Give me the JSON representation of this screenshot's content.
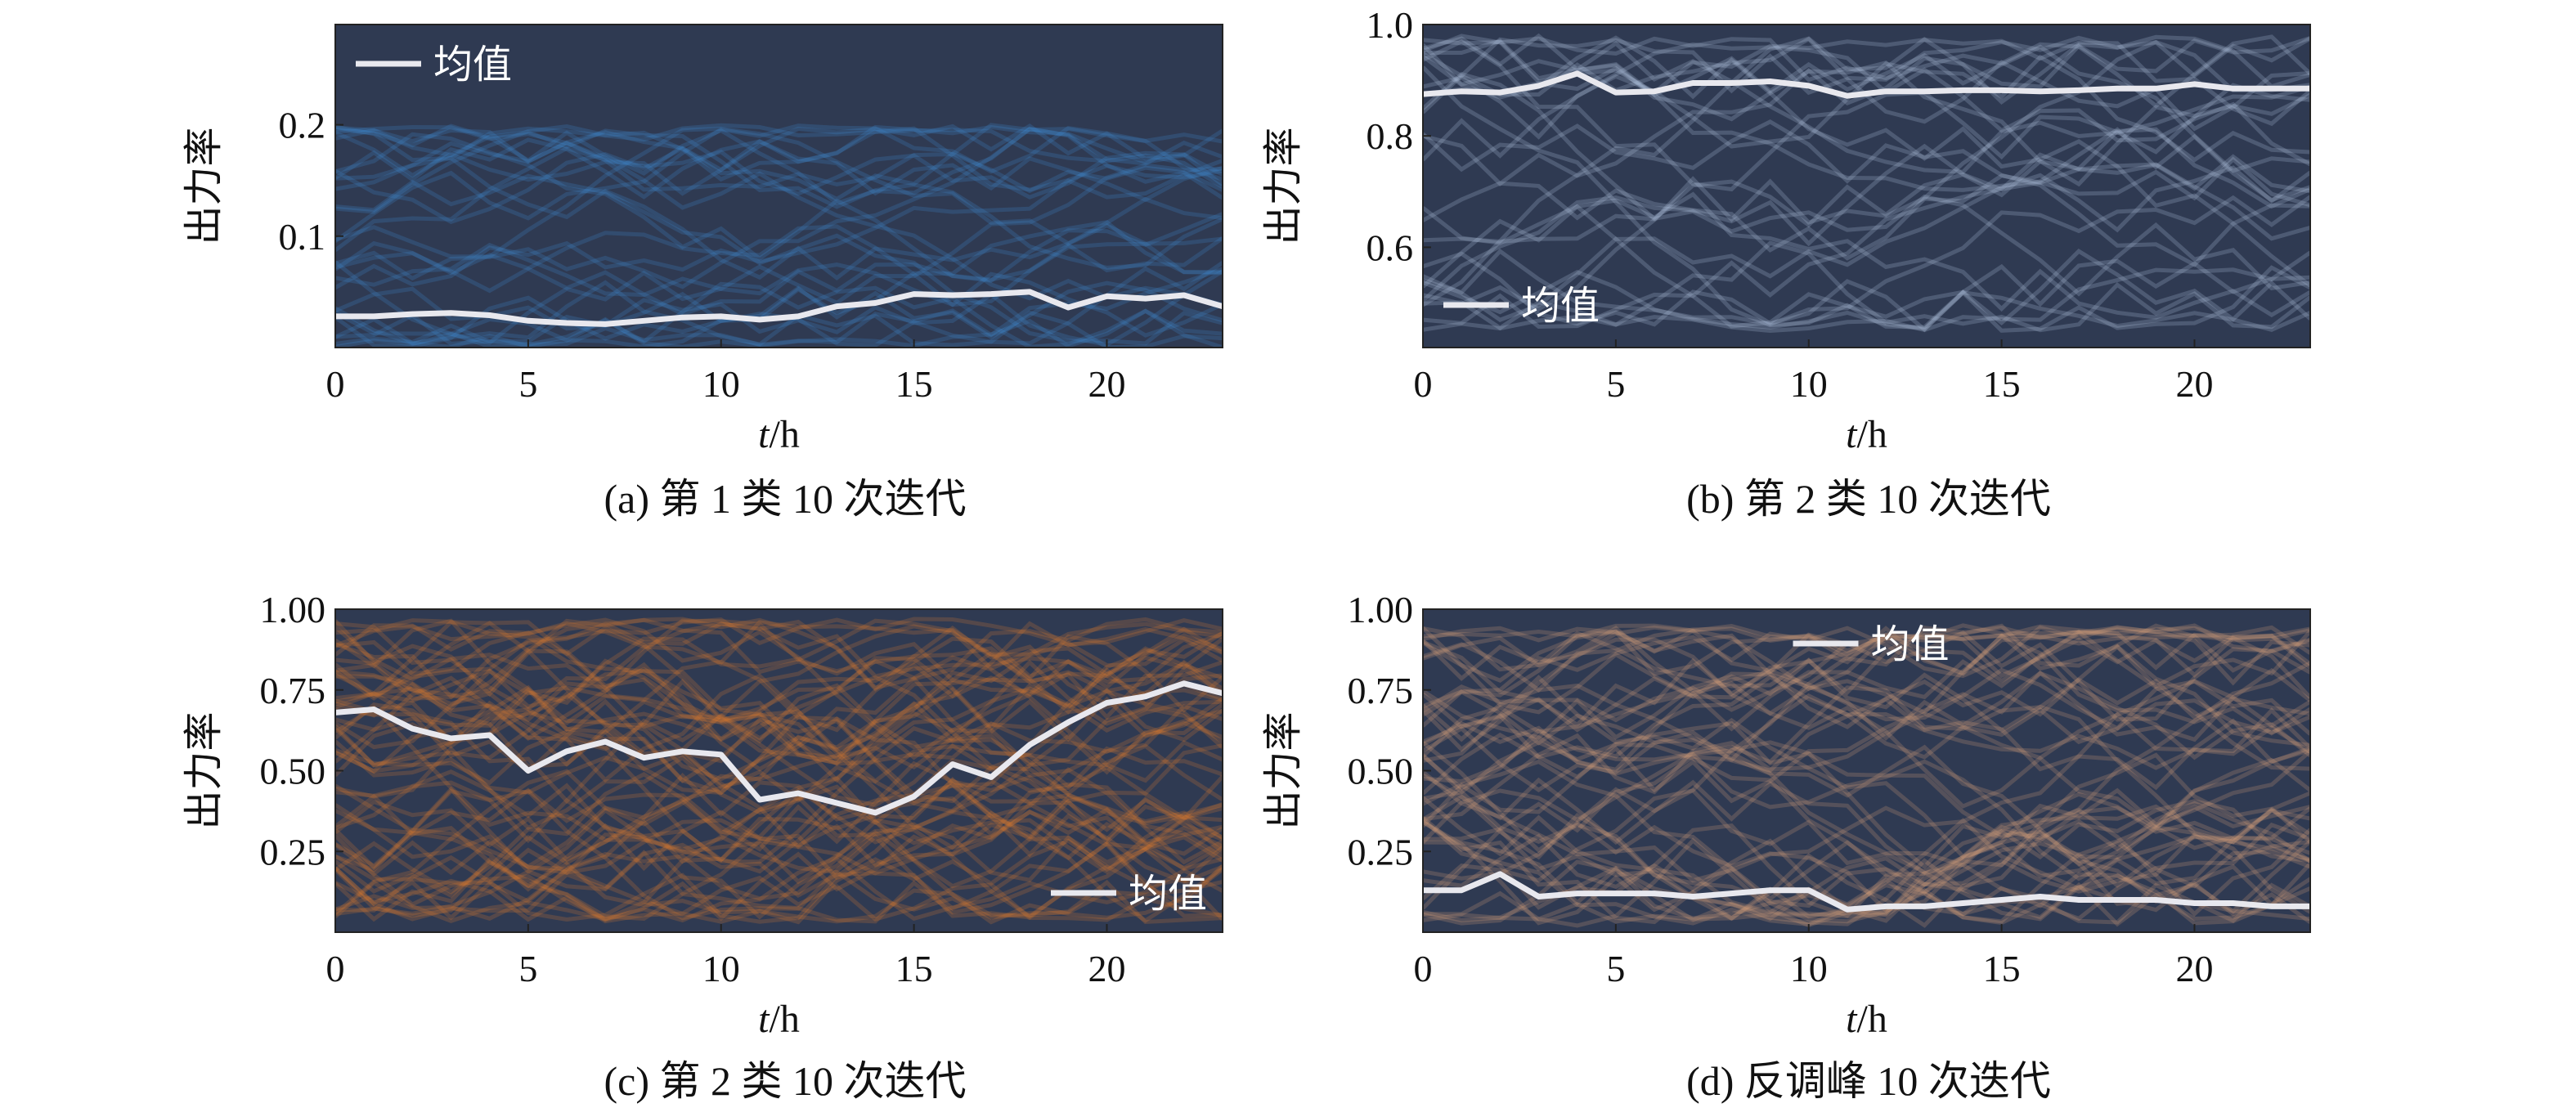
{
  "colors": {
    "plot_bg": "#2f3a52",
    "mean_line": "#e8e8ee",
    "series_a": "#3f8fd6",
    "series_b": "#b9cce8",
    "series_c": "#e07a2c",
    "series_d": "#e0a57a"
  },
  "chart_data": [
    {
      "type": "line",
      "panel": "a",
      "caption": "(a) 第 1 类 10 次迭代",
      "xlabel_italic": "t",
      "xlabel_unit": "/h",
      "ylabel": "出力率",
      "xlim": [
        0,
        23
      ],
      "ylim": [
        0.0,
        0.29
      ],
      "xticks": [
        0,
        5,
        10,
        15,
        20
      ],
      "xtick_labels": [
        "0",
        "5",
        "10",
        "15",
        "20"
      ],
      "yticks": [
        0.1,
        0.2
      ],
      "ytick_labels": [
        "0.1",
        "0.2"
      ],
      "legend": {
        "label": "均值",
        "position": "top-left"
      },
      "color": "#3f8fd6",
      "sample_count": 30,
      "sample_range": [
        0.0,
        0.2
      ],
      "mean": {
        "x": [
          0,
          1,
          2,
          3,
          4,
          5,
          6,
          7,
          8,
          9,
          10,
          11,
          12,
          13,
          14,
          15,
          16,
          17,
          18,
          19,
          20,
          21,
          22,
          23
        ],
        "y": [
          0.028,
          0.028,
          0.03,
          0.031,
          0.029,
          0.024,
          0.022,
          0.021,
          0.024,
          0.027,
          0.028,
          0.025,
          0.028,
          0.037,
          0.04,
          0.048,
          0.047,
          0.048,
          0.05,
          0.036,
          0.046,
          0.044,
          0.047,
          0.037
        ]
      }
    },
    {
      "type": "line",
      "panel": "b",
      "caption": "(b) 第 2 类 10 次迭代",
      "xlabel_italic": "t",
      "xlabel_unit": "/h",
      "ylabel": "出力率",
      "xlim": [
        0,
        23
      ],
      "ylim": [
        0.42,
        1.0
      ],
      "xticks": [
        0,
        5,
        10,
        15,
        20
      ],
      "xtick_labels": [
        "0",
        "5",
        "10",
        "15",
        "20"
      ],
      "yticks": [
        0.6,
        0.8,
        1.0
      ],
      "ytick_labels": [
        "0.6",
        "0.8",
        "1.0"
      ],
      "legend": {
        "label": "均值",
        "position": "bottom-left"
      },
      "color": "#b9cce8",
      "sample_count": 30,
      "sample_range": [
        0.45,
        0.98
      ],
      "mean": {
        "x": [
          0,
          1,
          2,
          3,
          4,
          5,
          6,
          7,
          8,
          9,
          10,
          11,
          12,
          13,
          14,
          15,
          16,
          17,
          18,
          19,
          20,
          21,
          22,
          23
        ],
        "y": [
          0.875,
          0.88,
          0.878,
          0.89,
          0.912,
          0.878,
          0.88,
          0.895,
          0.895,
          0.898,
          0.89,
          0.872,
          0.88,
          0.88,
          0.882,
          0.882,
          0.88,
          0.882,
          0.885,
          0.885,
          0.893,
          0.885,
          0.885,
          0.885
        ]
      }
    },
    {
      "type": "line",
      "panel": "c",
      "caption": "(c) 第 2 类 10 次迭代",
      "xlabel_italic": "t",
      "xlabel_unit": "/h",
      "ylabel": "出力率",
      "xlim": [
        0,
        23
      ],
      "ylim": [
        0.0,
        1.0
      ],
      "xticks": [
        0,
        5,
        10,
        15,
        20
      ],
      "xtick_labels": [
        "0",
        "5",
        "10",
        "15",
        "20"
      ],
      "yticks": [
        0.25,
        0.5,
        0.75,
        1.0
      ],
      "ytick_labels": [
        "0.25",
        "0.50",
        "0.75",
        "1.00"
      ],
      "legend": {
        "label": "均值",
        "position": "bottom-right"
      },
      "color": "#e07a2c",
      "sample_count": 60,
      "sample_range": [
        0.03,
        0.97
      ],
      "mean": {
        "x": [
          0,
          1,
          2,
          3,
          4,
          5,
          6,
          7,
          8,
          9,
          10,
          11,
          12,
          13,
          14,
          15,
          16,
          17,
          18,
          19,
          20,
          21,
          22,
          23
        ],
        "y": [
          0.68,
          0.69,
          0.63,
          0.6,
          0.61,
          0.5,
          0.56,
          0.59,
          0.54,
          0.56,
          0.55,
          0.41,
          0.43,
          0.4,
          0.37,
          0.42,
          0.52,
          0.48,
          0.58,
          0.65,
          0.71,
          0.73,
          0.77,
          0.74
        ]
      }
    },
    {
      "type": "line",
      "panel": "d",
      "caption": "(d) 反调峰 10 次迭代",
      "xlabel_italic": "t",
      "xlabel_unit": "/h",
      "ylabel": "出力率",
      "xlim": [
        0,
        23
      ],
      "ylim": [
        0.0,
        1.0
      ],
      "xticks": [
        0,
        5,
        10,
        15,
        20
      ],
      "xtick_labels": [
        "0",
        "5",
        "10",
        "15",
        "20"
      ],
      "yticks": [
        0.25,
        0.5,
        0.75,
        1.0
      ],
      "ytick_labels": [
        "0.25",
        "0.50",
        "0.75",
        "1.00"
      ],
      "legend": {
        "label": "均值",
        "position": "top-center"
      },
      "color": "#e0a57a",
      "sample_count": 50,
      "sample_range": [
        0.02,
        0.95
      ],
      "mean": {
        "x": [
          0,
          1,
          2,
          3,
          4,
          5,
          6,
          7,
          8,
          9,
          10,
          11,
          12,
          13,
          14,
          15,
          16,
          17,
          18,
          19,
          20,
          21,
          22,
          23
        ],
        "y": [
          0.13,
          0.13,
          0.18,
          0.11,
          0.12,
          0.12,
          0.12,
          0.11,
          0.12,
          0.13,
          0.13,
          0.07,
          0.08,
          0.08,
          0.09,
          0.1,
          0.11,
          0.1,
          0.1,
          0.1,
          0.09,
          0.09,
          0.08,
          0.08
        ]
      }
    }
  ]
}
